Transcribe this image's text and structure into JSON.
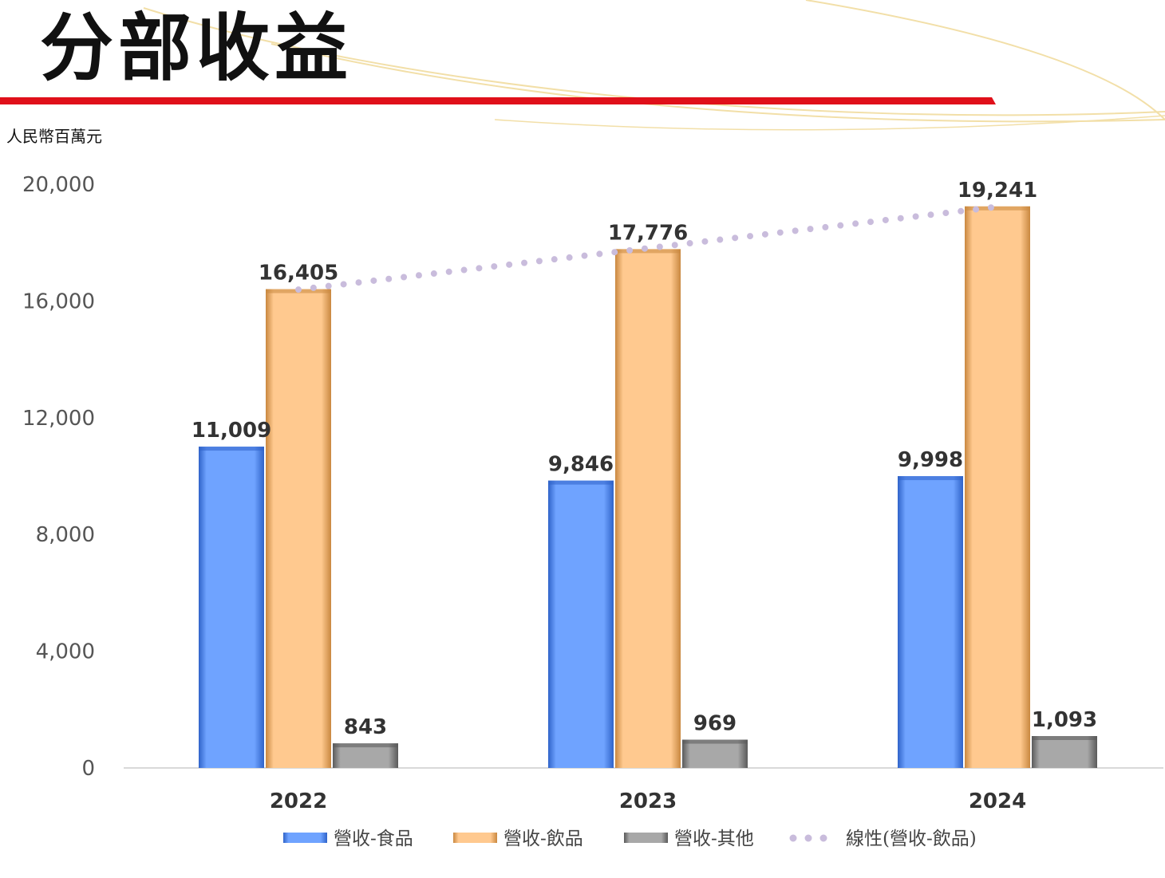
{
  "slide": {
    "title": "分部收益",
    "unit": "人民幣百萬元"
  },
  "colors": {
    "accent_red": "#e0101a",
    "deco_gold": "#f2dfa8"
  },
  "chart_data": {
    "type": "bar",
    "title": "",
    "xlabel": "",
    "ylabel": "",
    "ylim": [
      0,
      20000
    ],
    "y_ticks": [
      0,
      4000,
      8000,
      12000,
      16000,
      20000
    ],
    "y_tick_labels": [
      "0",
      "4,000",
      "8,000",
      "12,000",
      "16,000",
      "20,000"
    ],
    "categories": [
      "2022",
      "2023",
      "2024"
    ],
    "grid": false,
    "legend_position": "bottom",
    "series": [
      {
        "name": "營收-食品",
        "values": [
          11009,
          9846,
          9998
        ],
        "labels": [
          "11,009",
          "9,846",
          "9,998"
        ],
        "color": "#6fa3ff",
        "color_dark": "#2f63c9"
      },
      {
        "name": "營收-飲品",
        "values": [
          16405,
          17776,
          19241
        ],
        "labels": [
          "16,405",
          "17,776",
          "19,241"
        ],
        "color": "#ffc98f",
        "color_dark": "#c98840"
      },
      {
        "name": "營收-其他",
        "values": [
          843,
          969,
          1093
        ],
        "labels": [
          "843",
          "969",
          "1,093"
        ],
        "color": "#9e9e9e",
        "color_dark": "#5a5a5a"
      }
    ],
    "trendline": {
      "name": "線性(營收-飲品)",
      "of_series": "營收-飲品",
      "style": "dotted",
      "color": "#c9bcdc"
    }
  }
}
